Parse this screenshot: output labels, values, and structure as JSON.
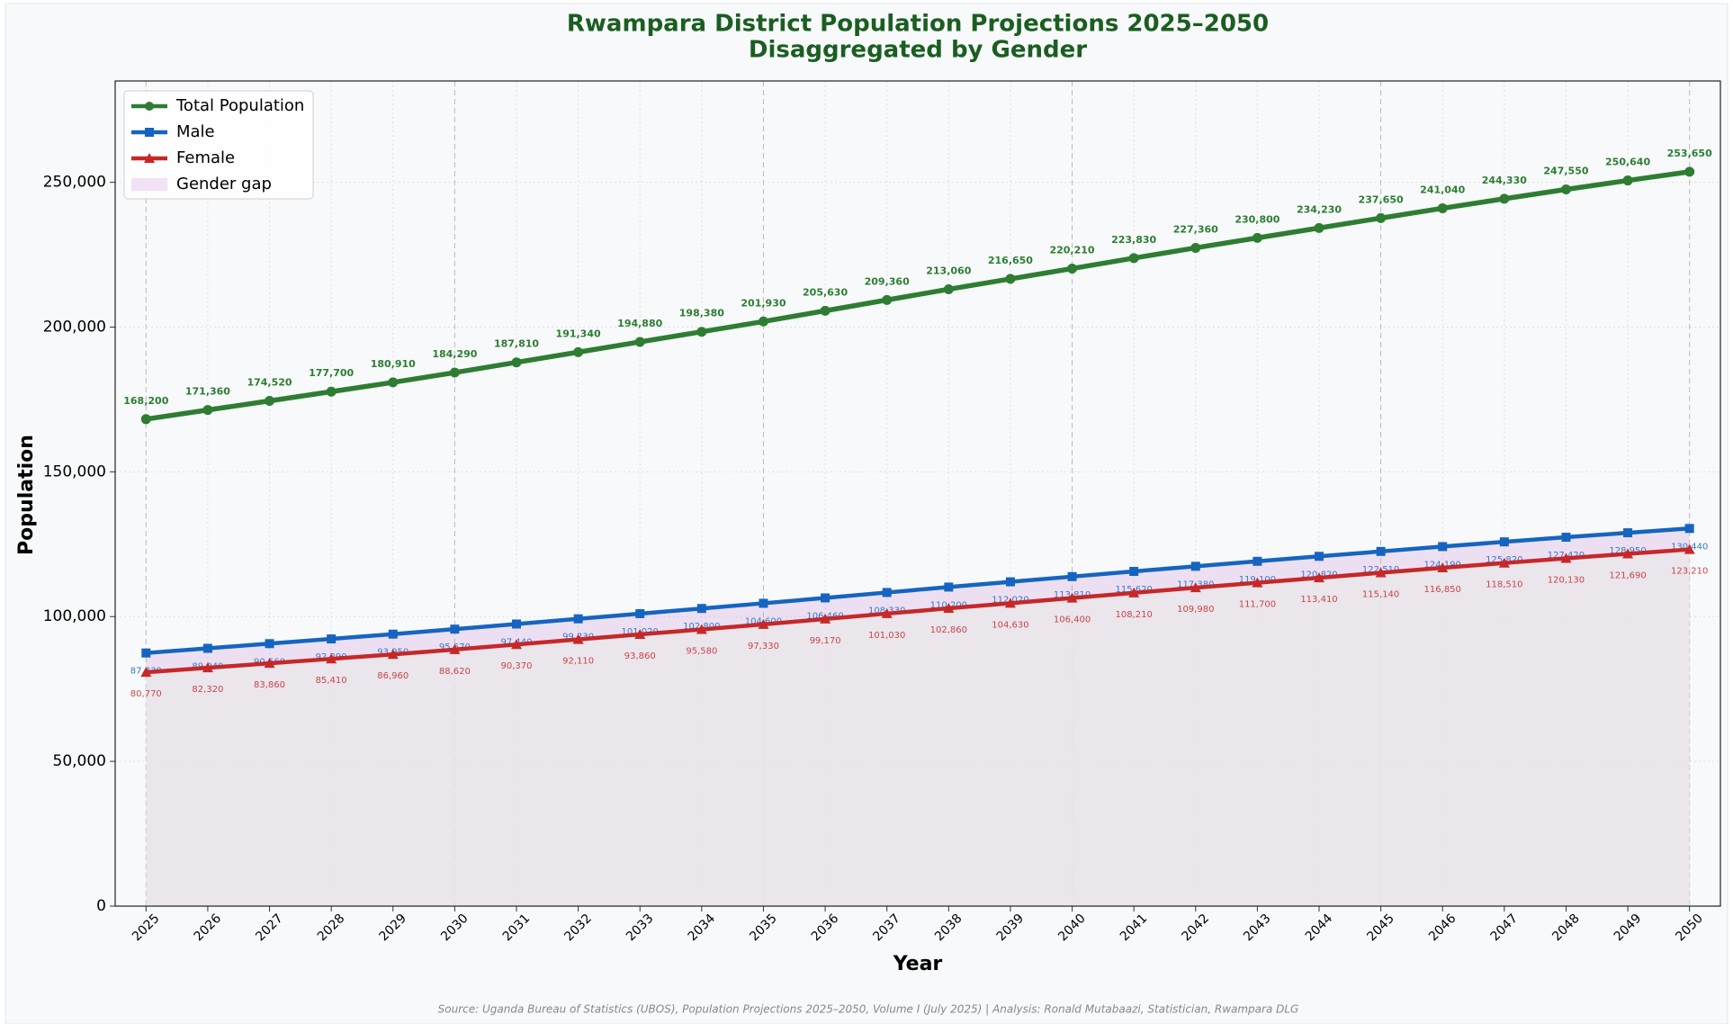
{
  "chart_data": {
    "type": "line",
    "title": "Rwampara District Population Projections 2025–2050",
    "subtitle": "Disaggregated by Gender",
    "xlabel": "Year",
    "ylabel": "Population",
    "source": "Source: Uganda Bureau of Statistics (UBOS), Population Projections 2025–2050, Volume I (July 2025) | Analysis: Ronald Mutabaazi, Statistician, Rwampara DLG",
    "x": [
      2025,
      2026,
      2027,
      2028,
      2029,
      2030,
      2031,
      2032,
      2033,
      2034,
      2035,
      2036,
      2037,
      2038,
      2039,
      2040,
      2041,
      2042,
      2043,
      2044,
      2045,
      2046,
      2047,
      2048,
      2049,
      2050
    ],
    "xlim": [
      2024.5,
      2050.5
    ],
    "xticks": [
      2025,
      2026,
      2027,
      2028,
      2029,
      2030,
      2031,
      2032,
      2033,
      2034,
      2035,
      2036,
      2037,
      2038,
      2039,
      2040,
      2041,
      2042,
      2043,
      2044,
      2045,
      2046,
      2047,
      2048,
      2049,
      2050
    ],
    "ylim": [
      0,
      285000
    ],
    "yticks": [
      0,
      {
        "value": 50000,
        "label": "50,000"
      },
      {
        "value": 100000,
        "label": "100,000"
      },
      {
        "value": 150000,
        "label": "150,000"
      },
      {
        "value": 200000,
        "label": "200,000"
      },
      {
        "value": 250000,
        "label": "250,000"
      }
    ],
    "grid": true,
    "legend": "upper left",
    "series": [
      {
        "name": "Total Population",
        "color": "#2e7d32",
        "marker": "circle",
        "values": [
          168200,
          171360,
          174520,
          177700,
          180910,
          184290,
          187810,
          191340,
          194880,
          198380,
          201930,
          205630,
          209360,
          213060,
          216650,
          220210,
          223830,
          227360,
          230800,
          234230,
          237650,
          241040,
          244330,
          247550,
          250640,
          253650
        ],
        "value_labels": [
          "168,200",
          "171,360",
          "174,520",
          "177,700",
          "180,910",
          "184,290",
          "187,810",
          "191,340",
          "194,880",
          "198,380",
          "201,930",
          "205,630",
          "209,360",
          "213,060",
          "216,650",
          "220,210",
          "223,830",
          "227,360",
          "230,800",
          "234,230",
          "237,650",
          "241,040",
          "244,330",
          "247,550",
          "250,640",
          "253,650"
        ]
      },
      {
        "name": "Male",
        "color": "#1565c0",
        "marker": "square",
        "values": [
          87430,
          89040,
          90660,
          92290,
          93950,
          95670,
          97440,
          99230,
          101020,
          102800,
          104600,
          106460,
          108330,
          110200,
          112020,
          113810,
          115620,
          117380,
          119100,
          120820,
          122510,
          124190,
          125820,
          127420,
          128950,
          130440
        ],
        "value_labels": [
          "87,430",
          "89,040",
          "90,660",
          "92,290",
          "93,950",
          "95,670",
          "97,440",
          "99,230",
          "101,020",
          "102,800",
          "104,600",
          "106,460",
          "108,330",
          "110,200",
          "112,020",
          "113,810",
          "115,620",
          "117,380",
          "119,100",
          "120,820",
          "122,510",
          "124,190",
          "125,820",
          "127,420",
          "128,950",
          "130,440"
        ]
      },
      {
        "name": "Female",
        "color": "#c62828",
        "marker": "triangle",
        "values": [
          80770,
          82320,
          83860,
          85410,
          86960,
          88620,
          90370,
          92110,
          93860,
          95580,
          97330,
          99170,
          101030,
          102860,
          104630,
          106400,
          108210,
          109980,
          111700,
          113410,
          115140,
          116850,
          118510,
          120130,
          121690,
          123210
        ],
        "value_labels": [
          "80,770",
          "82,320",
          "83,860",
          "85,410",
          "86,960",
          "88,620",
          "90,370",
          "92,110",
          "93,860",
          "95,580",
          "97,330",
          "99,170",
          "101,030",
          "102,860",
          "104,630",
          "106,400",
          "108,210",
          "109,980",
          "111,700",
          "113,410",
          "115,140",
          "116,850",
          "118,510",
          "120,130",
          "121,690",
          "123,210"
        ]
      }
    ],
    "gap_area": {
      "label": "Gender gap",
      "color": "#ce93d8"
    }
  }
}
